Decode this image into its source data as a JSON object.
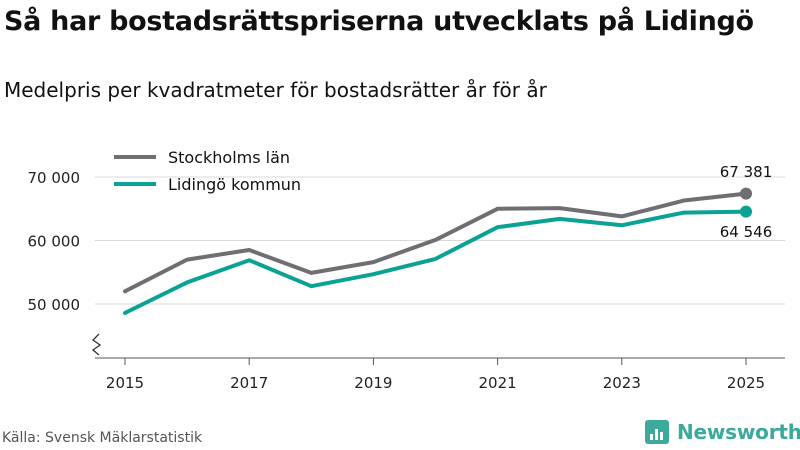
{
  "title": "Så har bostadsrättspriserna utvecklats på Lidingö",
  "subtitle": "Medelpris per kvadratmeter för bostadsrätter år för år",
  "source": "Källa: Svensk Mäklarstatistik",
  "brand": "Newsworthy",
  "colors": {
    "stockholm": "#6e6e73",
    "lidingo": "#0aa293",
    "grid": "#d9d9d9",
    "brand": "#3ba99c"
  },
  "chart_data": {
    "type": "line",
    "title": "Så har bostadsrättspriserna utvecklats på Lidingö",
    "subtitle": "Medelpris per kvadratmeter för bostadsrätter år för år",
    "x": [
      2015,
      2016,
      2017,
      2018,
      2019,
      2020,
      2021,
      2022,
      2023,
      2024,
      2025
    ],
    "series": [
      {
        "name": "Stockholms län",
        "values": [
          52000,
          57000,
          58500,
          54900,
          56600,
          60100,
          65000,
          65100,
          63800,
          66300,
          67381
        ]
      },
      {
        "name": "Lidingö kommun",
        "values": [
          48600,
          53400,
          56900,
          52800,
          54700,
          57100,
          62100,
          63400,
          62400,
          64400,
          64546
        ]
      }
    ],
    "x_ticks": [
      "2015",
      "2017",
      "2019",
      "2021",
      "2023",
      "2025"
    ],
    "y_ticks": [
      "50 000",
      "60 000",
      "70 000"
    ],
    "y_tick_values": [
      50000,
      60000,
      70000
    ],
    "ylim": [
      42000,
      72000
    ],
    "end_labels": [
      "67 381",
      "64 546"
    ],
    "legend_position": "top-left",
    "grid": true
  }
}
